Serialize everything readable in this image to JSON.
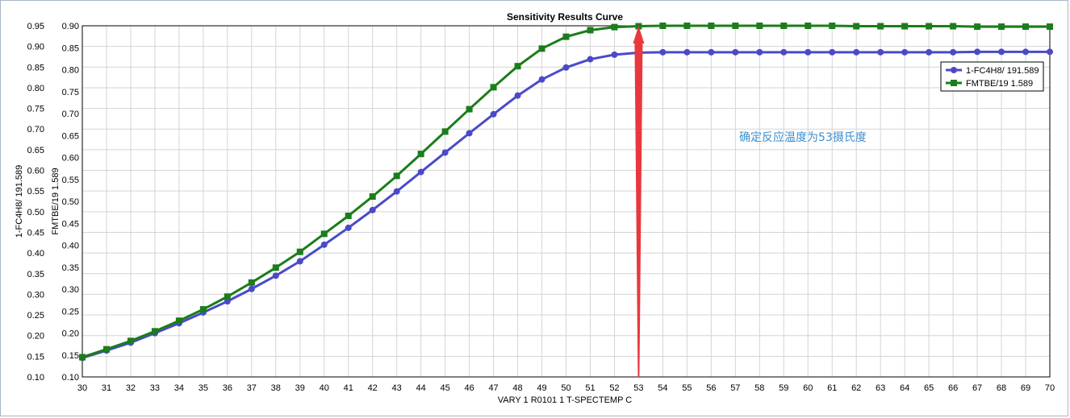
{
  "chart_data": {
    "type": "line",
    "title": "Sensitivity Results Curve",
    "xlabel": "VARY   1 R0101 1 T-SPECTEMP C",
    "ylabel_left": "1-FC4H8/ 191.589",
    "ylabel_right": "FMTBE/19 1.589",
    "xlim": [
      30,
      70
    ],
    "ylim": [
      0.1,
      0.95
    ],
    "ylim_secondary": [
      0.1,
      0.9
    ],
    "x_ticks": [
      30,
      31,
      32,
      33,
      34,
      35,
      36,
      37,
      38,
      39,
      40,
      41,
      42,
      43,
      44,
      45,
      46,
      47,
      48,
      49,
      50,
      51,
      52,
      53,
      54,
      55,
      56,
      57,
      58,
      59,
      60,
      61,
      62,
      63,
      64,
      65,
      66,
      67,
      68,
      69,
      70
    ],
    "y_ticks_left": [
      "0.10",
      "0.15",
      "0.20",
      "0.25",
      "0.30",
      "0.35",
      "0.40",
      "0.45",
      "0.50",
      "0.55",
      "0.60",
      "0.65",
      "0.70",
      "0.75",
      "0.80",
      "0.85",
      "0.90",
      "0.95"
    ],
    "y_ticks_right": [
      "0.10",
      "0.15",
      "0.20",
      "0.25",
      "0.30",
      "0.35",
      "0.40",
      "0.45",
      "0.50",
      "0.55",
      "0.60",
      "0.65",
      "0.70",
      "0.75",
      "0.80",
      "0.85",
      "0.90"
    ],
    "grid": true,
    "legend_position": "top-right",
    "x": [
      30,
      31,
      32,
      33,
      34,
      35,
      36,
      37,
      38,
      39,
      40,
      41,
      42,
      43,
      44,
      45,
      46,
      47,
      48,
      49,
      50,
      51,
      52,
      53,
      54,
      55,
      56,
      57,
      58,
      59,
      60,
      61,
      62,
      63,
      64,
      65,
      66,
      67,
      68,
      69,
      70
    ],
    "series": [
      {
        "name": "1-FC4H8/ 191.589",
        "axis": "left",
        "color": "#4a4ac8",
        "marker": "circle",
        "values": [
          0.146,
          0.164,
          0.183,
          0.206,
          0.23,
          0.256,
          0.283,
          0.313,
          0.345,
          0.38,
          0.42,
          0.461,
          0.504,
          0.549,
          0.596,
          0.643,
          0.69,
          0.736,
          0.781,
          0.82,
          0.849,
          0.869,
          0.88,
          0.885,
          0.886,
          0.886,
          0.886,
          0.886,
          0.886,
          0.886,
          0.886,
          0.886,
          0.886,
          0.886,
          0.886,
          0.886,
          0.886,
          0.887,
          0.887,
          0.887,
          0.887
        ]
      },
      {
        "name": "FMTBE/19 1.589",
        "axis": "right",
        "color": "#1b7d1b",
        "marker": "square",
        "values": [
          0.145,
          0.163,
          0.182,
          0.204,
          0.228,
          0.254,
          0.283,
          0.315,
          0.349,
          0.385,
          0.426,
          0.467,
          0.511,
          0.558,
          0.608,
          0.659,
          0.71,
          0.76,
          0.808,
          0.848,
          0.875,
          0.89,
          0.897,
          0.899,
          0.9,
          0.9,
          0.9,
          0.9,
          0.9,
          0.9,
          0.9,
          0.9,
          0.899,
          0.899,
          0.899,
          0.899,
          0.899,
          0.898,
          0.898,
          0.898,
          0.898
        ]
      }
    ],
    "annotations": [
      {
        "text": "确定反应温度为53摄氏度",
        "color": "#3d8fd0"
      },
      {
        "type": "arrow",
        "x": 53,
        "y_from": 0.1,
        "y_to": 0.9,
        "color": "#e8383d"
      }
    ]
  }
}
